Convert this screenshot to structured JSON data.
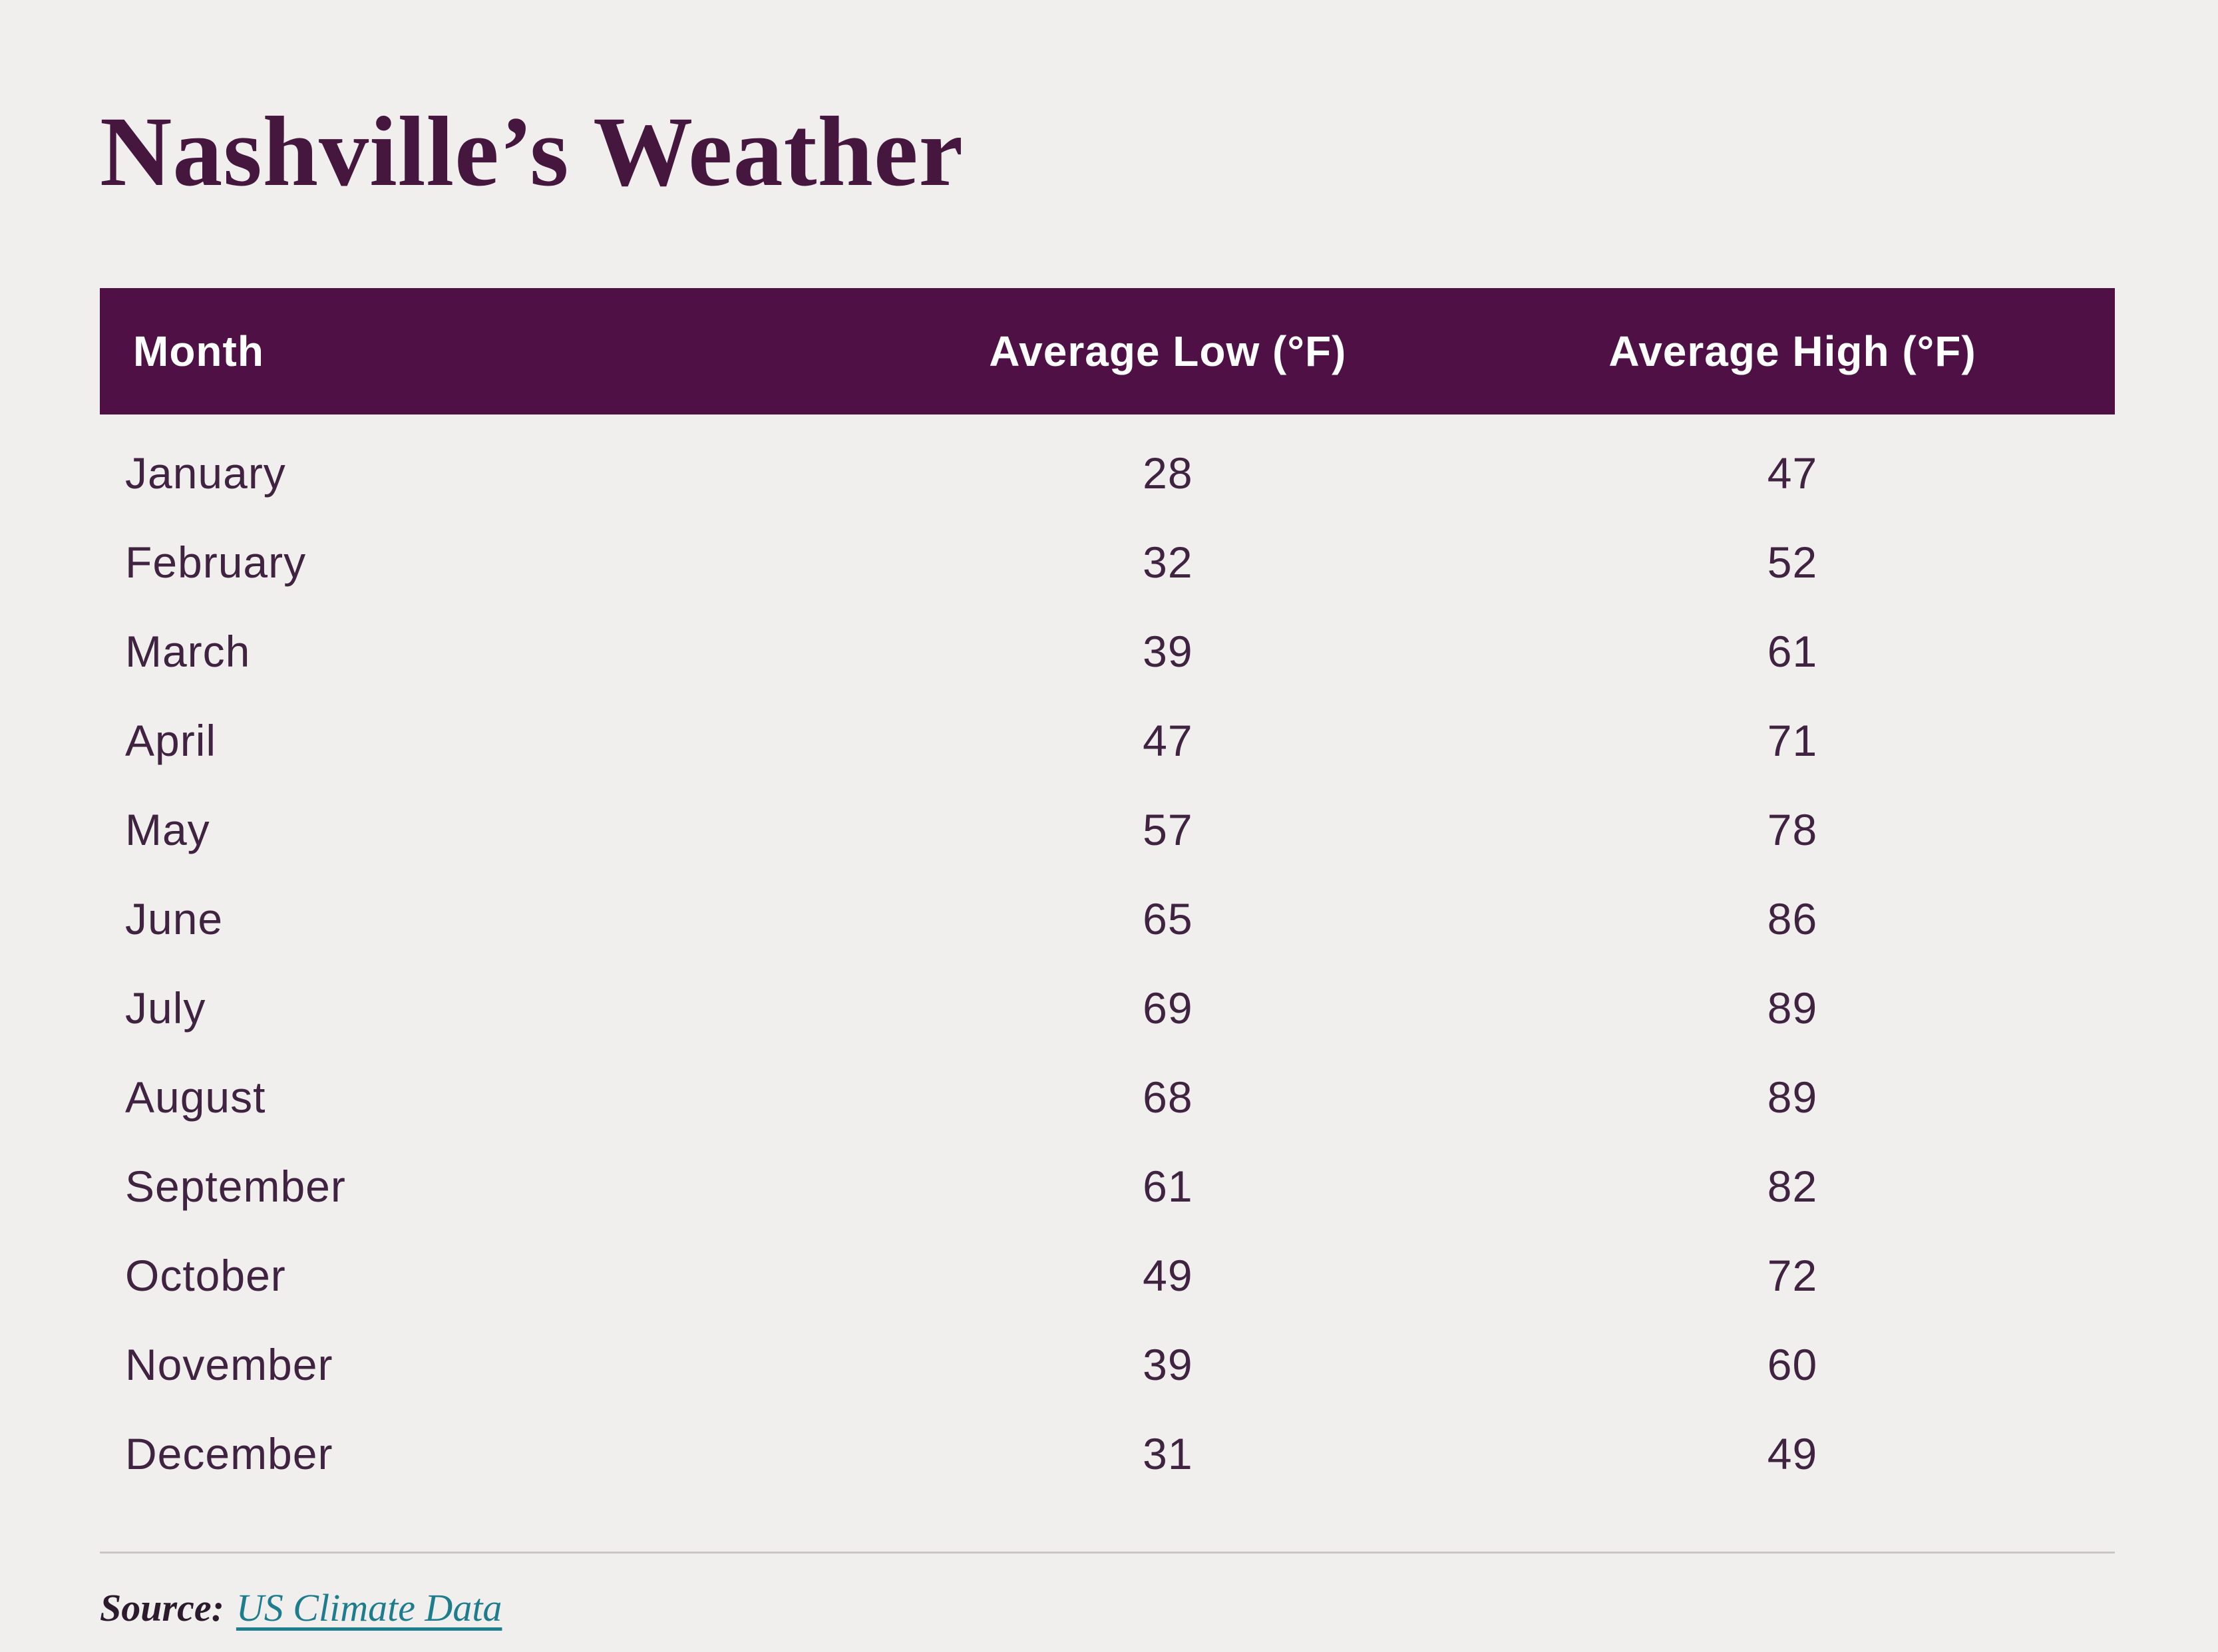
{
  "page": {
    "title": "Nashville’s Weather"
  },
  "chart_data": {
    "type": "table",
    "title": "Nashville’s Weather",
    "columns": [
      "Month",
      "Average Low (°F)",
      "Average High (°F)"
    ],
    "rows": [
      [
        "January",
        28,
        47
      ],
      [
        "February",
        32,
        52
      ],
      [
        "March",
        39,
        61
      ],
      [
        "April",
        47,
        71
      ],
      [
        "May",
        57,
        78
      ],
      [
        "June",
        65,
        86
      ],
      [
        "July",
        69,
        89
      ],
      [
        "August",
        68,
        89
      ],
      [
        "September",
        61,
        82
      ],
      [
        "October",
        49,
        72
      ],
      [
        "November",
        39,
        60
      ],
      [
        "December",
        31,
        49
      ]
    ]
  },
  "source": {
    "label": "Source:",
    "link_text": "US Climate Data"
  },
  "colors": {
    "background": "#f0efee",
    "header_bg": "#4f1145",
    "title_text": "#45173f",
    "body_text": "#3f2340",
    "link": "#1e7d8d",
    "divider": "#c9c6c4"
  }
}
